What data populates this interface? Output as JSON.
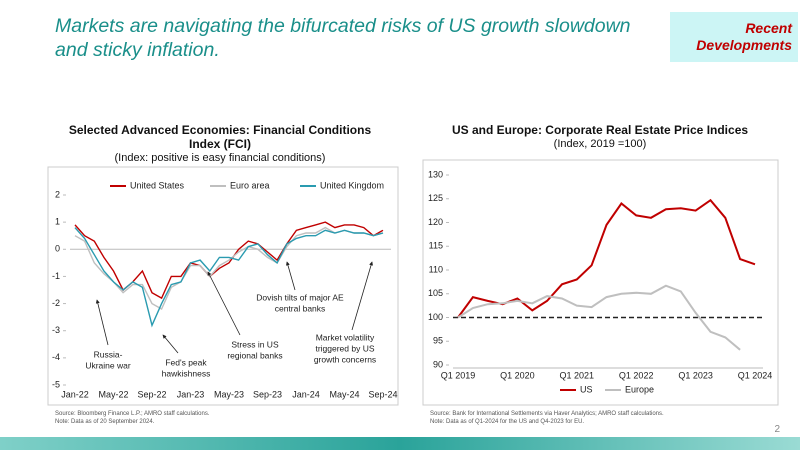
{
  "slide": {
    "title": "Markets are navigating the bifurcated risks of US growth slowdown and sticky inflation.",
    "tag": "Recent Developments",
    "page": "2"
  },
  "chart_data": [
    {
      "type": "line",
      "title": "Selected Advanced Economies: Financial Conditions Index (FCI)",
      "subtitle": "(Index: positive is easy financial conditions)",
      "categories": [
        "Jan-22",
        null,
        null,
        null,
        "May-22",
        null,
        null,
        null,
        "Sep-22",
        null,
        null,
        null,
        "Jan-23",
        null,
        null,
        null,
        "May-23",
        null,
        null,
        null,
        "Sep-23",
        null,
        null,
        null,
        "Jan-24",
        null,
        null,
        null,
        "May-24",
        null,
        null,
        null,
        "Sep-24"
      ],
      "series": [
        {
          "name": "United States",
          "color": "#c00000",
          "values": [
            0.9,
            0.5,
            0.3,
            -0.3,
            -0.8,
            -1.5,
            -1.2,
            -0.8,
            -1.6,
            -1.8,
            -1.0,
            -1.0,
            -0.5,
            -0.6,
            -1.0,
            -0.7,
            -0.5,
            0.0,
            0.3,
            0.2,
            -0.1,
            -0.4,
            0.2,
            0.7,
            0.8,
            0.9,
            1.0,
            0.8,
            0.9,
            0.9,
            0.8,
            0.5,
            0.7
          ]
        },
        {
          "name": "Euro area",
          "color": "#bfbfbf",
          "values": [
            0.5,
            0.3,
            -0.5,
            -0.9,
            -1.2,
            -1.6,
            -1.3,
            -1.3,
            -2.0,
            -2.2,
            -1.4,
            -1.2,
            -0.6,
            -0.6,
            -1.0,
            -0.6,
            -0.4,
            -0.1,
            0.1,
            0.0,
            -0.3,
            -0.5,
            0.1,
            0.5,
            0.6,
            0.6,
            0.8,
            0.6,
            0.7,
            0.6,
            0.6,
            0.5,
            0.6
          ]
        },
        {
          "name": "United Kingdom",
          "color": "#2a9bb0",
          "values": [
            0.8,
            0.4,
            -0.2,
            -0.8,
            -1.2,
            -1.5,
            -1.2,
            -1.4,
            -2.8,
            -2.0,
            -1.3,
            -1.2,
            -0.5,
            -0.4,
            -0.8,
            -0.3,
            -0.3,
            -0.4,
            0.1,
            0.2,
            -0.2,
            -0.5,
            0.2,
            0.4,
            0.5,
            0.5,
            0.7,
            0.6,
            0.7,
            0.6,
            0.6,
            0.5,
            0.6
          ]
        }
      ],
      "ylim": [
        -5,
        2
      ],
      "yticks": [
        -5,
        -4,
        -3,
        -2,
        -1,
        0,
        1,
        2
      ],
      "legend": "top",
      "annotations": [
        [
          "Russia-",
          "Ukraine war"
        ],
        [
          "Fed's peak",
          "hawkishness"
        ],
        [
          "Stress in US",
          "regional banks"
        ],
        [
          "Dovish tilts of major AE",
          "central banks"
        ],
        [
          "Market volatility",
          "triggered by US",
          "growth concerns"
        ]
      ],
      "source": "Source: Bloomberg Finance L.P.; AMRO staff calculations.",
      "note": "Note: Data as of 20 September 2024."
    },
    {
      "type": "line",
      "title": "US and Europe: Corporate Real Estate Price Indices",
      "subtitle": "(Index, 2019 =100)",
      "categories": [
        "Q1 2019",
        null,
        null,
        null,
        "Q1 2020",
        null,
        null,
        null,
        "Q1 2021",
        null,
        null,
        null,
        "Q1 2022",
        null,
        null,
        null,
        "Q1 2023",
        null,
        null,
        null,
        "Q1 2024"
      ],
      "series": [
        {
          "name": "US",
          "color": "#c00000",
          "values": [
            100,
            104.3,
            103.5,
            102.8,
            104.0,
            101.5,
            103.5,
            107,
            108,
            111,
            119.5,
            124,
            121.5,
            121,
            122.8,
            123,
            122.5,
            124.7,
            121,
            112.3,
            111.2
          ]
        },
        {
          "name": "Europe",
          "color": "#bfbfbf",
          "values": [
            100,
            102,
            102.8,
            103,
            103.5,
            103,
            104.5,
            104,
            102.5,
            102.2,
            104.3,
            105,
            105.2,
            105,
            106.7,
            105.5,
            101,
            97,
            95.8,
            93.2,
            null
          ]
        }
      ],
      "ylim": [
        90,
        130
      ],
      "yticks": [
        90,
        95,
        100,
        105,
        110,
        115,
        120,
        125,
        130
      ],
      "legend": "bottom",
      "reference_line": 100,
      "source": "Source: Bank for International Settlements via Haver Analytics; AMRO staff calculations.",
      "note": "Note: Data as of Q1-2024 for the US and Q4-2023 for EU."
    }
  ]
}
